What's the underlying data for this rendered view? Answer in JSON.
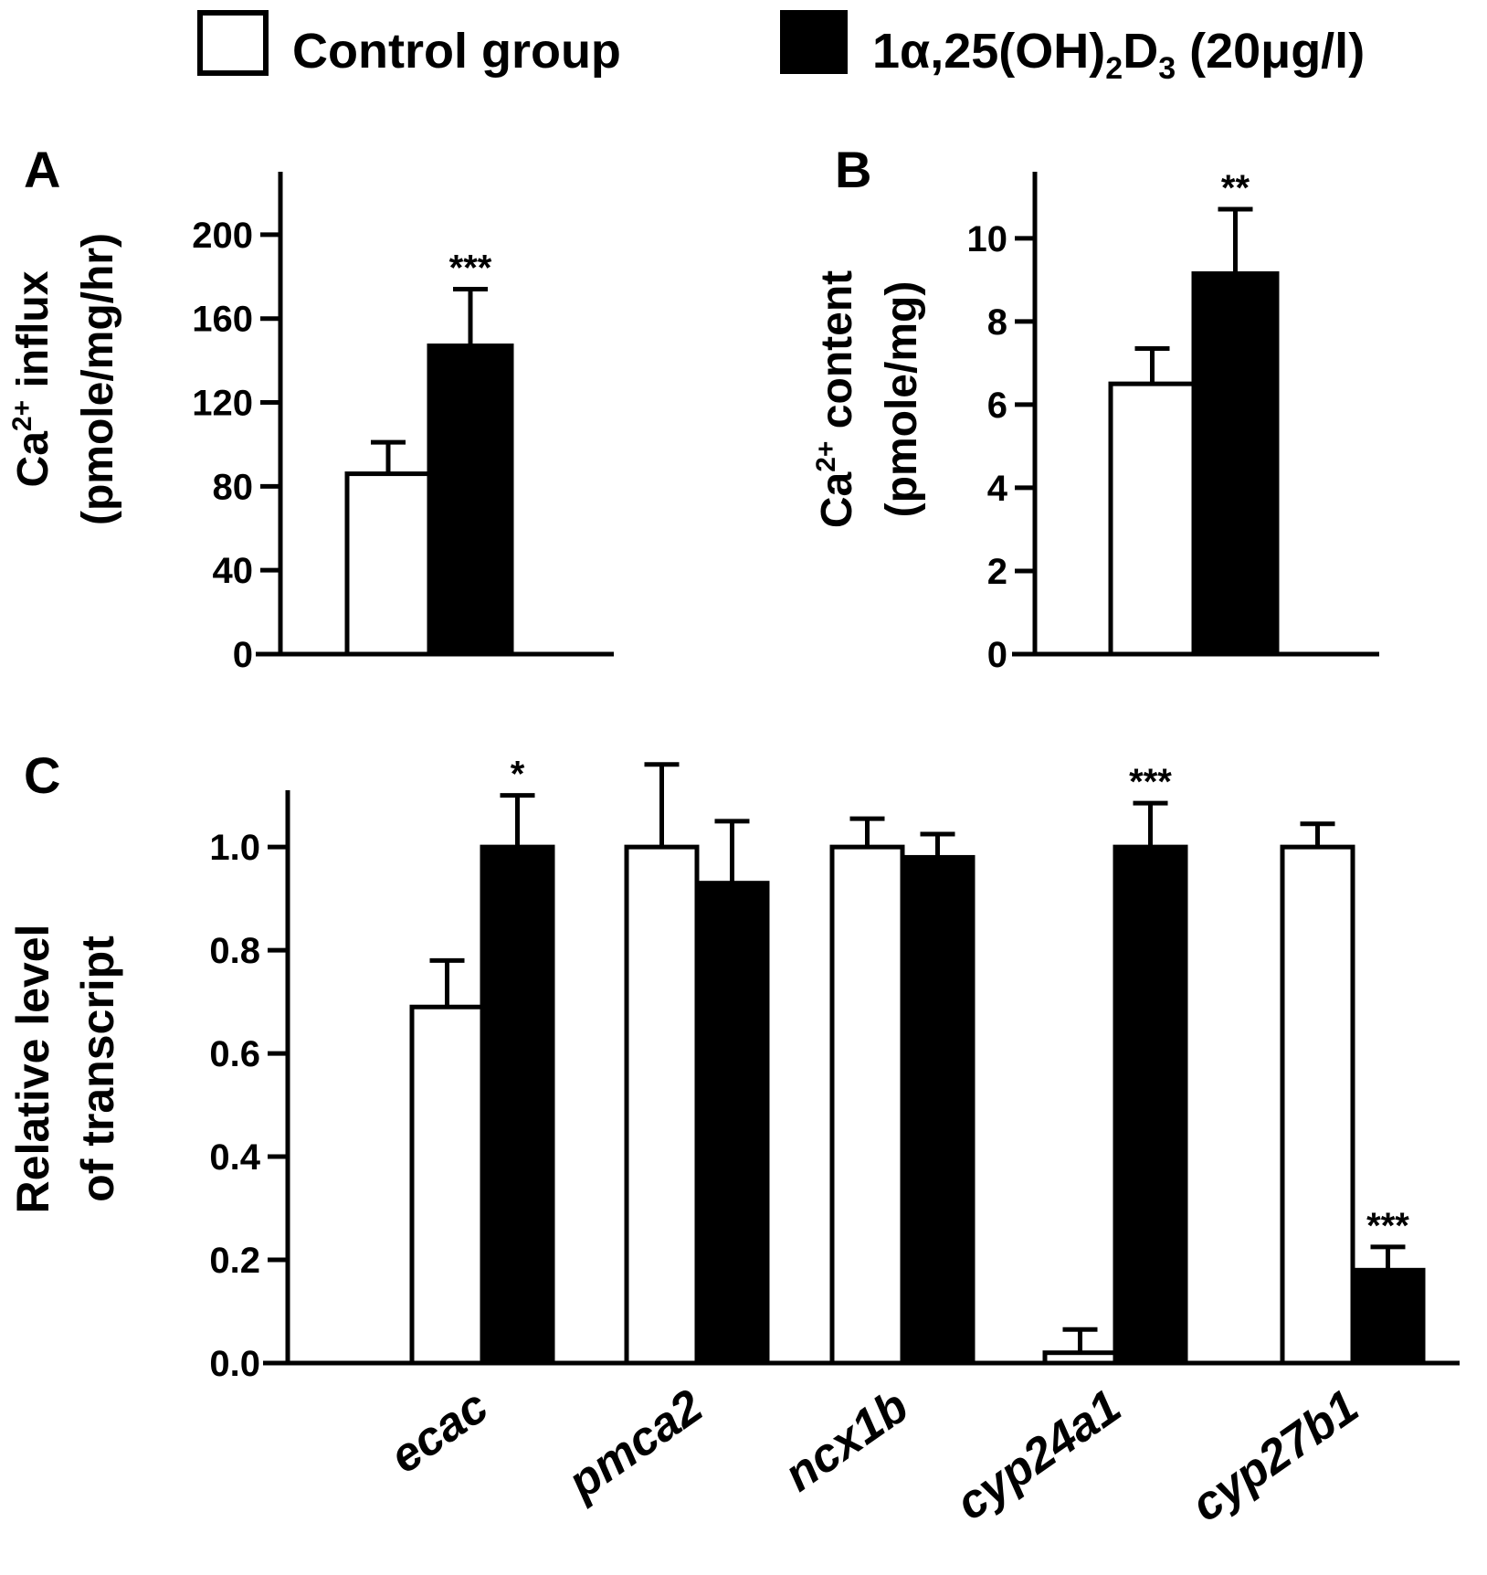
{
  "legend": {
    "items": [
      {
        "label": "Control group",
        "fill": "#ffffff"
      },
      {
        "label": "1α,25(OH)",
        "sub1": "2",
        "mid": "D",
        "sub2": "3",
        "tail": " (20μg/l)",
        "fill": "#000000"
      }
    ]
  },
  "colors": {
    "control": "#ffffff",
    "treated": "#000000",
    "stroke": "#000000"
  },
  "chart_data": [
    {
      "panel": "A",
      "type": "bar",
      "ylabel_line1": "Ca",
      "ylabel_sup": "2+",
      "ylabel_rest": " influx",
      "ylabel_line2": "(pmole/mg/hr)",
      "ylim": [
        0,
        230
      ],
      "yticks": [
        0,
        40,
        80,
        120,
        160,
        200
      ],
      "ytick_labels": [
        "0",
        "40",
        "80",
        "120",
        "160",
        "200"
      ],
      "categories": [
        ""
      ],
      "series": [
        {
          "name": "Control group",
          "values": [
            86
          ],
          "errors": [
            15
          ],
          "sig": [
            ""
          ]
        },
        {
          "name": "1α,25(OH)2D3 (20μg/l)",
          "values": [
            147
          ],
          "errors": [
            27
          ],
          "sig": [
            "***"
          ]
        }
      ]
    },
    {
      "panel": "B",
      "type": "bar",
      "ylabel_line1": "Ca",
      "ylabel_sup": "2+",
      "ylabel_rest": " content",
      "ylabel_line2": "(pmole/mg)",
      "ylim": [
        0,
        11.6
      ],
      "yticks": [
        0,
        2,
        4,
        6,
        8,
        10
      ],
      "ytick_labels": [
        "0",
        "2",
        "4",
        "6",
        "8",
        "10"
      ],
      "categories": [
        ""
      ],
      "series": [
        {
          "name": "Control group",
          "values": [
            6.5
          ],
          "errors": [
            0.85
          ],
          "sig": [
            ""
          ]
        },
        {
          "name": "1α,25(OH)2D3 (20μg/l)",
          "values": [
            9.15
          ],
          "errors": [
            1.55
          ],
          "sig": [
            "**"
          ]
        }
      ]
    },
    {
      "panel": "C",
      "type": "bar",
      "ylabel_line1": "Relative level",
      "ylabel_line2": "of transcript",
      "ylim": [
        0,
        1.11
      ],
      "yticks": [
        0,
        0.2,
        0.4,
        0.6,
        0.8,
        1.0
      ],
      "ytick_labels": [
        "0.0",
        "0.2",
        "0.4",
        "0.6",
        "0.8",
        "1.0"
      ],
      "categories": [
        "ecac",
        "pmca2",
        "ncx1b",
        "cyp24a1",
        "cyp27b1"
      ],
      "series": [
        {
          "name": "Control group",
          "values": [
            0.69,
            1.0,
            1.0,
            0.02,
            1.0
          ],
          "errors": [
            0.09,
            0.16,
            0.055,
            0.045,
            0.045
          ],
          "sig": [
            "",
            "",
            "",
            "",
            ""
          ]
        },
        {
          "name": "1α,25(OH)2D3 (20μg/l)",
          "values": [
            1.0,
            0.93,
            0.98,
            1.0,
            0.18
          ],
          "errors": [
            0.1,
            0.12,
            0.045,
            0.085,
            0.045
          ],
          "sig": [
            "*",
            "",
            "",
            "***",
            "***"
          ]
        }
      ]
    }
  ]
}
